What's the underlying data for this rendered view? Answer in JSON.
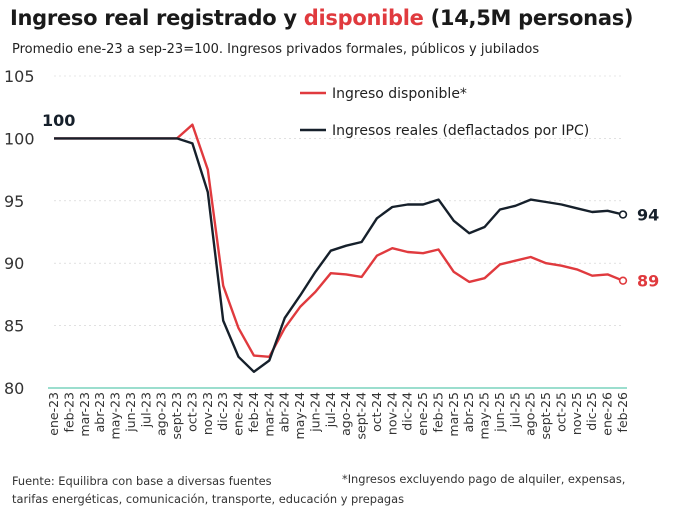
{
  "title": {
    "part1": "Ingreso real registrado y ",
    "highlight": "disponible",
    "part2": " (14,5M personas)"
  },
  "subtitle": "Promedio ene-23 a sep-23=100. Ingresos privados formales, públicos y jubilados",
  "source": "Fuente: Equilibra con base a diversas fuentes",
  "footnote": "*Ingresos excluyendo pago de alquiler, expensas,",
  "footnote_cont": "tarifas energéticas, comunicación, transporte, educación y prepagas",
  "colors": {
    "disponible": "#e03a3e",
    "reales": "#16202b",
    "baseline": "#5fc9b0",
    "grid": "#cfcfcf"
  },
  "chart_data": {
    "type": "line",
    "categories": [
      "ene-23",
      "feb-23",
      "mar-23",
      "abr-23",
      "may-23",
      "jun-23",
      "jul-23",
      "ago-23",
      "sept-23",
      "oct-23",
      "nov-23",
      "dic-23",
      "ene-24",
      "feb-24",
      "mar-24",
      "abr-24",
      "may-24",
      "jun-24",
      "jul-24",
      "ago-24",
      "sept-24",
      "oct-24",
      "nov-24",
      "dic-24",
      "ene-25",
      "feb-25",
      "mar-25",
      "abr-25",
      "may-25",
      "jun-25",
      "jul-25",
      "ago-25",
      "sept-25",
      "oct-25",
      "nov-25",
      "dic-25",
      "ene-26",
      "feb-26"
    ],
    "ylim": [
      80,
      105
    ],
    "yticks": [
      80,
      85,
      90,
      95,
      100,
      105
    ],
    "series": [
      {
        "name": "Ingreso disponible*",
        "key": "disponible",
        "values": [
          100,
          100,
          100,
          100,
          100,
          100,
          100,
          100,
          100,
          101.1,
          97.5,
          88.2,
          84.8,
          82.6,
          82.5,
          84.8,
          86.5,
          87.7,
          89.2,
          89.1,
          88.9,
          90.6,
          91.2,
          90.9,
          90.8,
          91.1,
          89.3,
          88.5,
          88.8,
          89.9,
          90.2,
          90.5,
          90.0,
          89.8,
          89.5,
          89.0,
          89.1,
          88.6
        ],
        "end_label": "89"
      },
      {
        "name": "Ingresos reales (deflactados por IPC)",
        "key": "reales",
        "values": [
          100,
          100,
          100,
          100,
          100,
          100,
          100,
          100,
          100,
          99.6,
          95.7,
          85.4,
          82.5,
          81.3,
          82.2,
          85.6,
          87.4,
          89.3,
          91.0,
          91.4,
          91.7,
          93.6,
          94.5,
          94.7,
          94.7,
          95.1,
          93.4,
          92.4,
          92.9,
          94.3,
          94.6,
          95.1,
          94.9,
          94.7,
          94.4,
          94.1,
          94.2,
          93.9
        ],
        "end_label": "94"
      }
    ],
    "start_label": "100"
  }
}
